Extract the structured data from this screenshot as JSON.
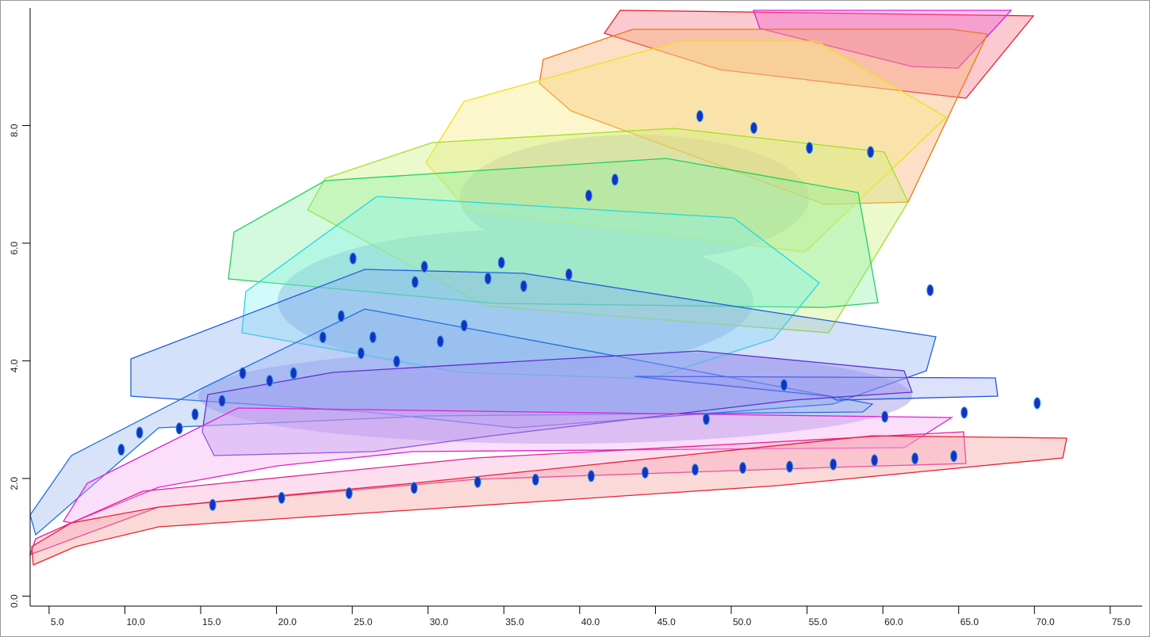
{
  "chart_data": {
    "type": "scatter",
    "x": [
      9.76,
      10.97,
      13.59,
      14.63,
      16.41,
      17.77,
      19.55,
      21.13,
      23.06,
      24.27,
      25.58,
      25.05,
      26.36,
      27.93,
      29.14,
      29.76,
      30.81,
      32.38,
      33.95,
      34.84,
      36.31,
      39.29,
      40.6,
      42.33,
      47.93,
      51.49,
      55.16,
      59.19,
      63.12,
      53.48,
      60.13,
      65.37,
      70.18,
      15.79,
      20.34,
      24.79,
      29.08,
      33.27,
      37.09,
      40.76,
      44.32,
      47.62,
      50.76,
      53.85,
      56.73,
      59.45,
      62.12,
      64.68,
      48.35
    ],
    "values": [
      2.49,
      2.78,
      2.85,
      3.09,
      3.32,
      3.79,
      3.66,
      3.79,
      4.4,
      4.76,
      4.13,
      5.74,
      4.4,
      3.99,
      5.34,
      5.6,
      4.33,
      4.6,
      5.4,
      5.67,
      5.27,
      5.47,
      6.81,
      7.08,
      8.16,
      7.96,
      7.62,
      7.55,
      5.2,
      3.59,
      3.05,
      3.12,
      3.28,
      1.55,
      1.67,
      1.75,
      1.84,
      1.94,
      1.98,
      2.04,
      2.1,
      2.15,
      2.18,
      2.2,
      2.24,
      2.31,
      2.34,
      2.38,
      3.01
    ],
    "color": "#1b2fc4",
    "xlim": [
      3.75,
      77.1
    ],
    "ylim": [
      -0.17,
      10.0
    ],
    "xticks": [
      {
        "value": 5,
        "label": "5.0"
      },
      {
        "value": 10,
        "label": "10.0"
      },
      {
        "value": 15,
        "label": "15.0"
      },
      {
        "value": 20,
        "label": "20.0"
      },
      {
        "value": 25,
        "label": "25.0"
      },
      {
        "value": 30,
        "label": "30.0"
      },
      {
        "value": 35,
        "label": "35.0"
      },
      {
        "value": 40,
        "label": "40.0"
      },
      {
        "value": 45,
        "label": "45.0"
      },
      {
        "value": 50,
        "label": "50.0"
      },
      {
        "value": 55,
        "label": "55.0"
      },
      {
        "value": 60,
        "label": "60.0"
      },
      {
        "value": 65,
        "label": "65.0"
      },
      {
        "value": 70,
        "label": "70.0"
      },
      {
        "value": 75,
        "label": "75.0"
      }
    ],
    "yticks": [
      {
        "value": 0,
        "label": "0.0"
      },
      {
        "value": 2,
        "label": "2.0"
      },
      {
        "value": 4,
        "label": "4.0"
      },
      {
        "value": 6,
        "label": "6.0"
      },
      {
        "value": 8,
        "label": "8.0"
      }
    ]
  }
}
